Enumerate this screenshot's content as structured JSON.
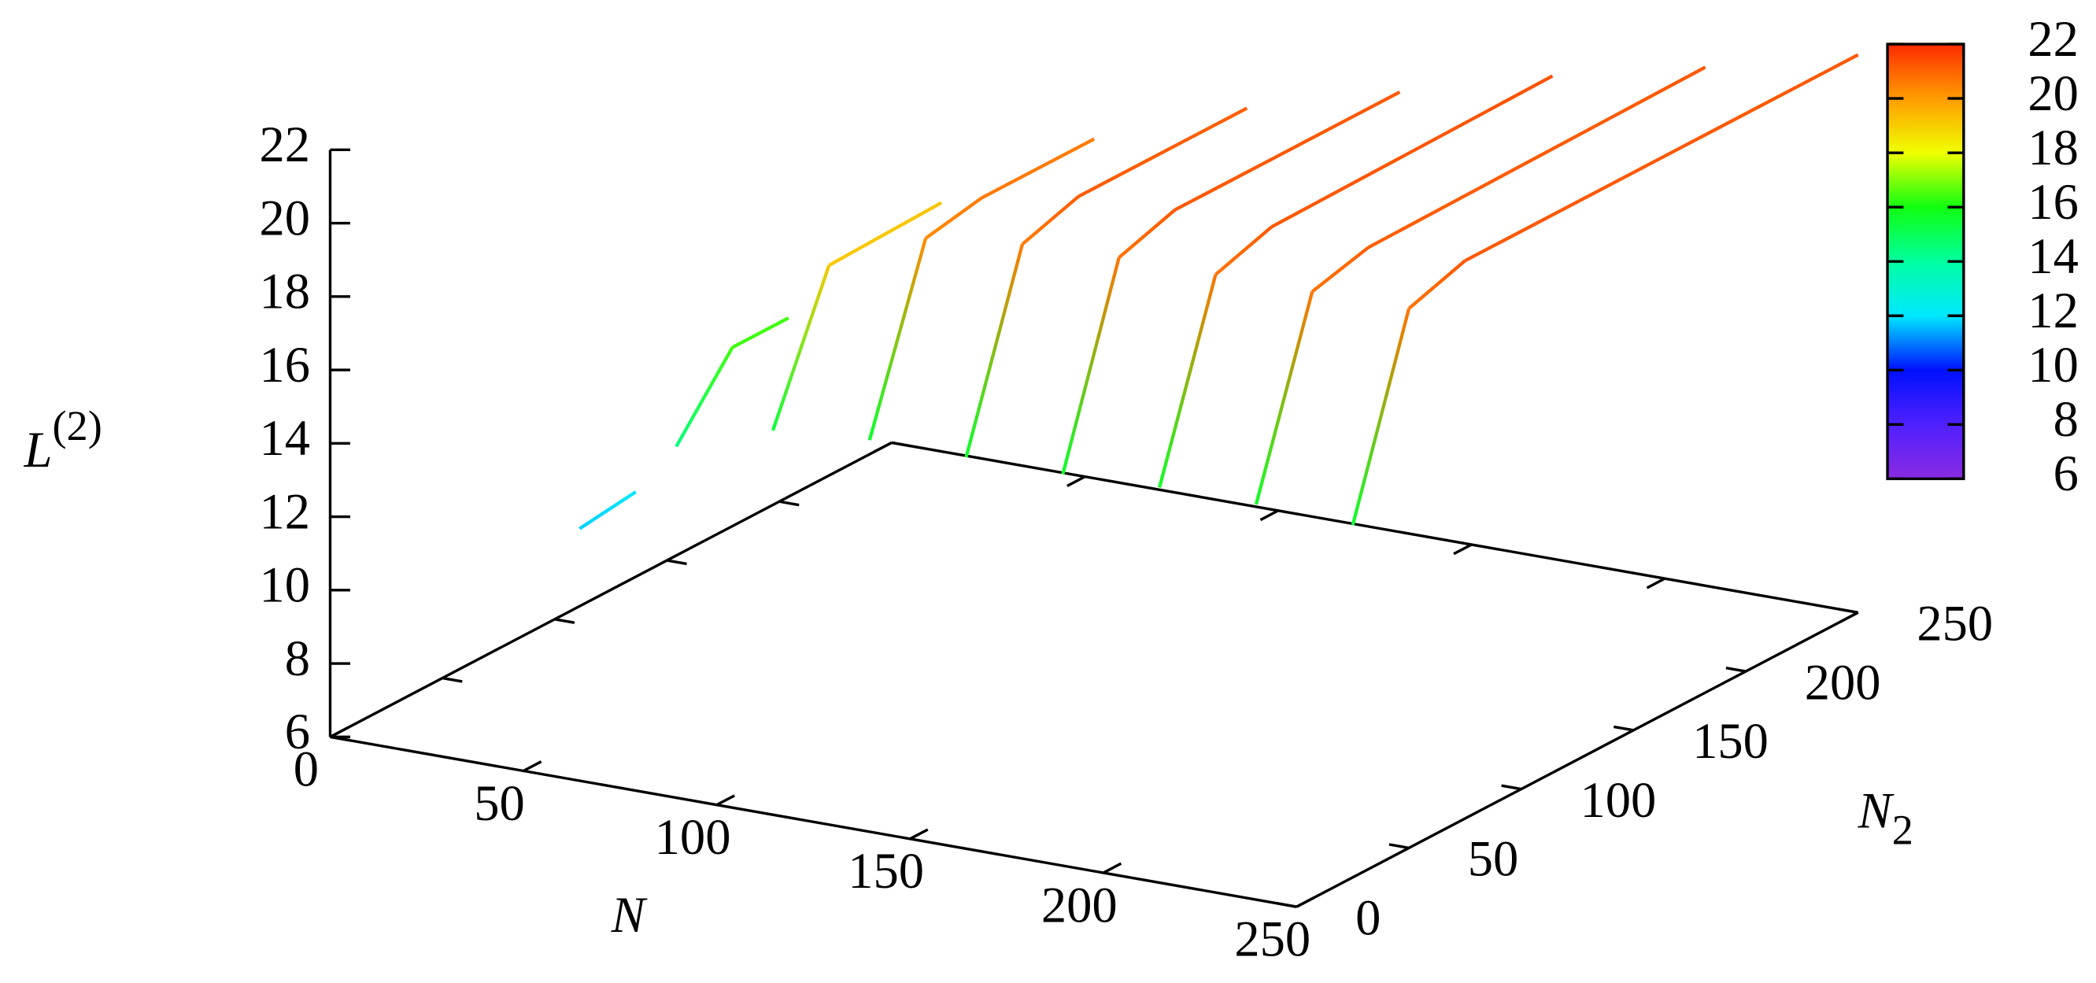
{
  "chart_data": {
    "type": "line3d",
    "xlabel": "N",
    "ylabel": {
      "text": "N",
      "sub": "2"
    },
    "zlabel": {
      "text": "L",
      "sup": "(2)"
    },
    "xlim": [
      0,
      250
    ],
    "xticks": [
      0,
      50,
      100,
      150,
      200,
      250
    ],
    "ylim": [
      0,
      250
    ],
    "yticks": [
      0,
      50,
      100,
      150,
      200,
      250
    ],
    "zlim": [
      6,
      22
    ],
    "zticks": [
      6,
      8,
      10,
      12,
      14,
      16,
      18,
      20,
      22
    ],
    "cblim": [
      6,
      22
    ],
    "cbticks": [
      6,
      8,
      10,
      12,
      14,
      16,
      18,
      20,
      22
    ],
    "palette": [
      "#8a2be2",
      "#5020ff",
      "#0010ff",
      "#00e8ff",
      "#00ffa0",
      "#10ff10",
      "#f0ff00",
      "#ff9c00",
      "#ff2a00"
    ],
    "series": [
      {
        "N": 50,
        "N2": [
          25,
          50
        ],
        "values": [
          11.8,
          12.0
        ]
      },
      {
        "N": 75,
        "N2": [
          25,
          50,
          75
        ],
        "values": [
          14.5,
          16.4,
          16.4
        ]
      },
      {
        "N": 100,
        "N2": [
          25,
          50,
          100
        ],
        "values": [
          15.4,
          19.1,
          19.2
        ]
      },
      {
        "N": 125,
        "N2": [
          25,
          50,
          75,
          125
        ],
        "values": [
          15.6,
          20.3,
          20.6,
          20.6
        ]
      },
      {
        "N": 150,
        "N2": [
          25,
          50,
          75,
          150
        ],
        "values": [
          15.6,
          20.6,
          21.1,
          21.1
        ]
      },
      {
        "N": 175,
        "N2": [
          25,
          50,
          75,
          175
        ],
        "values": [
          15.6,
          20.7,
          21.2,
          21.2
        ]
      },
      {
        "N": 200,
        "N2": [
          25,
          50,
          75,
          200
        ],
        "values": [
          15.7,
          20.7,
          21.2,
          21.3
        ]
      },
      {
        "N": 225,
        "N2": [
          25,
          50,
          75,
          225
        ],
        "values": [
          15.7,
          20.7,
          21.1,
          21.2
        ]
      },
      {
        "N": 250,
        "N2": [
          25,
          50,
          75,
          250
        ],
        "values": [
          15.6,
          20.7,
          21.2,
          21.2
        ]
      }
    ]
  }
}
